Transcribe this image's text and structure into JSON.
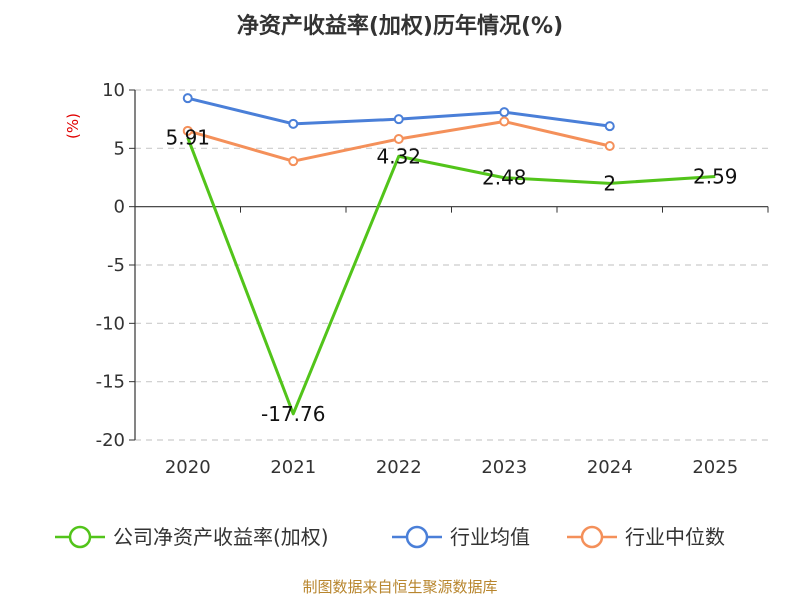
{
  "chart_data": {
    "type": "line",
    "title": "净资产收益率(加权)历年情况(%)",
    "ylabel": "(%)",
    "xlabel": "",
    "categories": [
      "2020",
      "2021",
      "2022",
      "2023",
      "2024",
      "2025"
    ],
    "ylim": [
      -20,
      10
    ],
    "yticks": [
      10,
      5,
      0,
      -5,
      -10,
      -15,
      -20
    ],
    "grid": true,
    "legend_position": "bottom",
    "series": [
      {
        "name": "公司净资产收益率(加权)",
        "color": "#52c41a",
        "values": [
          5.91,
          -17.76,
          4.32,
          2.48,
          2,
          2.59
        ],
        "labels": [
          "5.91",
          "-17.76",
          "4.32",
          "2.48",
          "2",
          "2.59"
        ],
        "markers": false
      },
      {
        "name": "行业均值",
        "color": "#4a7fd8",
        "values": [
          9.3,
          7.1,
          7.5,
          8.1,
          6.9,
          null
        ],
        "markers": true
      },
      {
        "name": "行业中位数",
        "color": "#f4905a",
        "values": [
          6.5,
          3.9,
          5.8,
          7.3,
          5.2,
          null
        ],
        "markers": true
      }
    ],
    "source": "制图数据来自恒生聚源数据库"
  }
}
